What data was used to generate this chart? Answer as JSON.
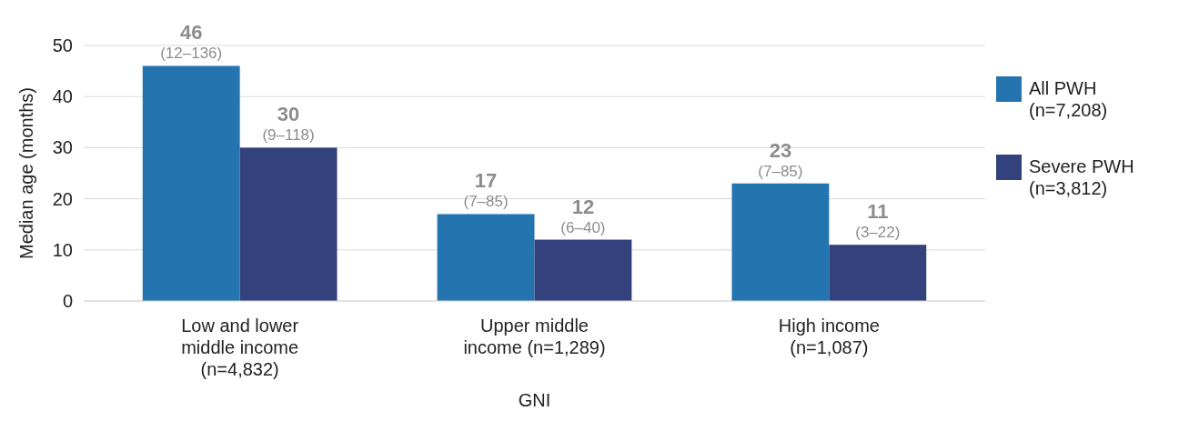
{
  "chart_data": {
    "type": "bar",
    "xlabel": "GNI",
    "ylabel": "Median age (months)",
    "categories": [
      "Low and lower\nmiddle income\n(n=4,832)",
      "Upper middle\nincome (n=1,289)",
      "High income\n(n=1,087)"
    ],
    "series": [
      {
        "name": "All PWH\n(n=7,208)",
        "color": "#2474b0",
        "values": [
          46,
          17,
          23
        ],
        "value_labels": [
          "46\n(12–136)",
          "17\n(7–85)",
          "23\n(7–85)"
        ]
      },
      {
        "name": "Severe PWH\n(n=3,812)",
        "color": "#33417c",
        "values": [
          30,
          12,
          11
        ],
        "value_labels": [
          "30\n(9–118)",
          "12\n(6–40)",
          "11\n(3–22)"
        ]
      }
    ],
    "ylim": [
      0,
      50
    ],
    "yticks": [
      0,
      10,
      20,
      30,
      40,
      50
    ],
    "grid": "y",
    "legend": "right"
  }
}
